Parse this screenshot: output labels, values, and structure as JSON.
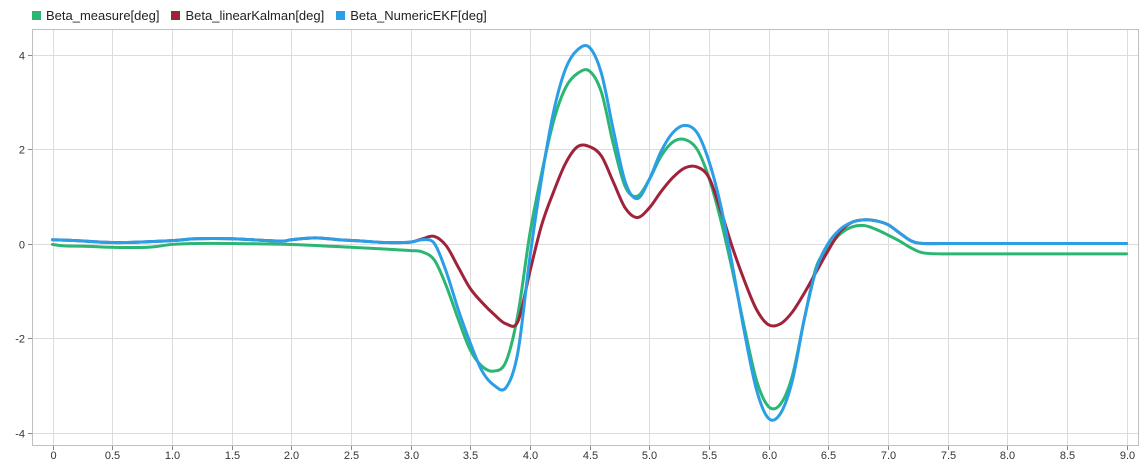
{
  "chart_data": {
    "type": "line",
    "title": "",
    "xlabel": "",
    "ylabel": "",
    "xlim": [
      -0.1,
      9.1
    ],
    "ylim": [
      -4.2,
      4.5
    ],
    "x_ticks": [
      0,
      0.5,
      1.0,
      1.5,
      2.0,
      2.5,
      3.0,
      3.5,
      4.0,
      4.5,
      5.0,
      5.5,
      6.0,
      6.5,
      7.0,
      7.5,
      8.0,
      8.5,
      9.0
    ],
    "x_tick_labels": [
      "0",
      "0.5",
      "1.0",
      "1.5",
      "2.0",
      "2.5",
      "3.0",
      "3.5",
      "4.0",
      "4.5",
      "5.0",
      "5.5",
      "6.0",
      "6.5",
      "7.0",
      "7.5",
      "8.0",
      "8.5",
      "9.0"
    ],
    "y_ticks": [
      -4,
      -2,
      0,
      2,
      4
    ],
    "y_tick_labels": [
      "-4",
      "-2",
      "0",
      "2",
      "4"
    ],
    "grid": true,
    "legend_position": "top-left",
    "series": [
      {
        "name": "Beta_measure[deg]",
        "color": "#2bb673",
        "x": [
          0,
          0.1,
          0.3,
          0.5,
          0.8,
          1.0,
          1.2,
          1.5,
          2.0,
          2.5,
          2.8,
          3.0,
          3.1,
          3.2,
          3.3,
          3.4,
          3.5,
          3.6,
          3.7,
          3.8,
          3.9,
          4.0,
          4.1,
          4.2,
          4.3,
          4.4,
          4.5,
          4.6,
          4.7,
          4.8,
          4.9,
          5.0,
          5.1,
          5.2,
          5.3,
          5.4,
          5.5,
          5.6,
          5.7,
          5.8,
          5.9,
          6.0,
          6.1,
          6.2,
          6.3,
          6.4,
          6.5,
          6.6,
          6.7,
          6.8,
          6.9,
          7.0,
          7.1,
          7.2,
          7.3,
          7.5,
          8.0,
          8.5,
          9.0
        ],
        "values": [
          -0.02,
          -0.05,
          -0.06,
          -0.08,
          -0.08,
          -0.02,
          0.0,
          0.0,
          -0.02,
          -0.08,
          -0.12,
          -0.15,
          -0.18,
          -0.35,
          -0.9,
          -1.6,
          -2.25,
          -2.6,
          -2.7,
          -2.5,
          -1.5,
          0.2,
          1.5,
          2.6,
          3.3,
          3.6,
          3.65,
          3.2,
          2.1,
          1.2,
          1.0,
          1.35,
          1.85,
          2.15,
          2.2,
          2.0,
          1.4,
          0.5,
          -0.6,
          -1.8,
          -2.9,
          -3.45,
          -3.4,
          -2.8,
          -1.6,
          -0.5,
          -0.1,
          0.2,
          0.35,
          0.38,
          0.3,
          0.18,
          0.05,
          -0.1,
          -0.2,
          -0.22,
          -0.22,
          -0.22,
          -0.22
        ]
      },
      {
        "name": "Beta_linearKalman[deg]",
        "color": "#a0233c",
        "x": [
          0,
          0.2,
          0.4,
          0.6,
          1.0,
          1.2,
          1.5,
          1.9,
          2.0,
          2.2,
          2.4,
          2.6,
          2.8,
          3.0,
          3.1,
          3.2,
          3.3,
          3.4,
          3.5,
          3.6,
          3.7,
          3.8,
          3.9,
          4.0,
          4.1,
          4.2,
          4.3,
          4.4,
          4.5,
          4.6,
          4.7,
          4.8,
          4.9,
          5.0,
          5.1,
          5.2,
          5.3,
          5.4,
          5.5,
          5.6,
          5.7,
          5.8,
          5.9,
          6.0,
          6.1,
          6.2,
          6.3,
          6.4,
          6.5,
          6.6,
          6.7,
          6.8,
          6.9,
          7.0,
          7.1,
          7.2,
          7.3,
          7.5,
          8.0,
          8.5,
          9.0
        ],
        "values": [
          0.08,
          0.06,
          0.03,
          0.02,
          0.06,
          0.1,
          0.1,
          0.05,
          0.08,
          0.12,
          0.08,
          0.05,
          0.02,
          0.03,
          0.1,
          0.15,
          -0.05,
          -0.5,
          -0.95,
          -1.25,
          -1.5,
          -1.7,
          -1.65,
          -0.6,
          0.4,
          1.1,
          1.7,
          2.05,
          2.05,
          1.85,
          1.3,
          0.75,
          0.55,
          0.75,
          1.1,
          1.4,
          1.6,
          1.62,
          1.4,
          0.7,
          -0.1,
          -0.8,
          -1.4,
          -1.72,
          -1.7,
          -1.45,
          -1.05,
          -0.6,
          -0.15,
          0.25,
          0.45,
          0.5,
          0.48,
          0.4,
          0.22,
          0.05,
          0.0,
          0.0,
          0.0,
          0.0,
          0.0
        ]
      },
      {
        "name": "Beta_NumericEKF[deg]",
        "color": "#2a9ee6",
        "x": [
          0,
          0.2,
          0.4,
          0.6,
          1.0,
          1.2,
          1.5,
          1.9,
          2.0,
          2.2,
          2.4,
          2.6,
          2.8,
          3.0,
          3.1,
          3.2,
          3.3,
          3.4,
          3.5,
          3.6,
          3.7,
          3.8,
          3.9,
          4.0,
          4.1,
          4.2,
          4.3,
          4.4,
          4.5,
          4.6,
          4.7,
          4.8,
          4.9,
          5.0,
          5.1,
          5.2,
          5.3,
          5.4,
          5.5,
          5.6,
          5.7,
          5.8,
          5.9,
          6.0,
          6.1,
          6.2,
          6.3,
          6.4,
          6.5,
          6.6,
          6.7,
          6.8,
          6.9,
          7.0,
          7.1,
          7.2,
          7.3,
          7.5,
          8.0,
          8.5,
          9.0
        ],
        "values": [
          0.08,
          0.06,
          0.03,
          0.02,
          0.06,
          0.1,
          0.1,
          0.05,
          0.08,
          0.12,
          0.08,
          0.05,
          0.02,
          0.03,
          0.08,
          0.0,
          -0.6,
          -1.4,
          -2.1,
          -2.7,
          -3.0,
          -3.05,
          -2.3,
          -0.3,
          1.4,
          2.8,
          3.7,
          4.1,
          4.15,
          3.6,
          2.4,
          1.3,
          0.95,
          1.35,
          1.95,
          2.35,
          2.5,
          2.35,
          1.75,
          0.8,
          -0.5,
          -1.9,
          -3.1,
          -3.7,
          -3.6,
          -2.9,
          -1.6,
          -0.55,
          0.0,
          0.3,
          0.45,
          0.5,
          0.48,
          0.4,
          0.22,
          0.05,
          0.0,
          0.0,
          0.0,
          0.0,
          0.0
        ]
      }
    ]
  }
}
